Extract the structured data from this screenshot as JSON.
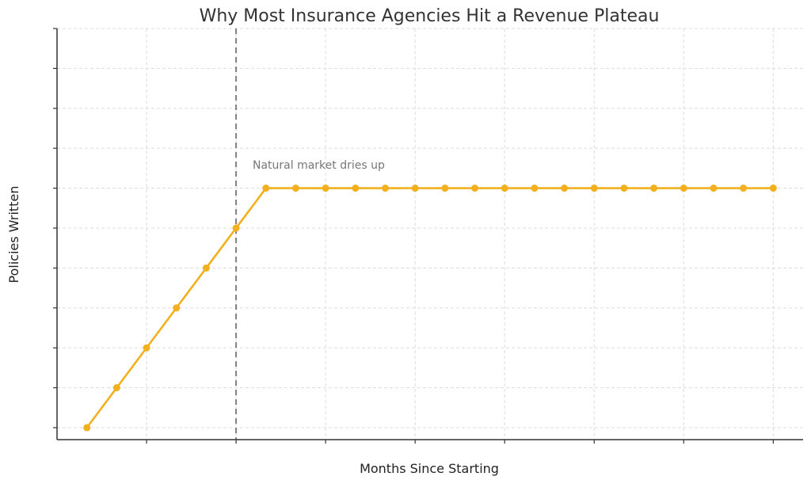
{
  "chart_data": {
    "type": "line",
    "title": "Why Most Insurance Agencies Hit a Revenue Plateau",
    "xlabel": "Months Since Starting",
    "ylabel": "Policies Written",
    "x": [
      1,
      2,
      3,
      4,
      5,
      6,
      7,
      8,
      9,
      10,
      11,
      12,
      13,
      14,
      15,
      16,
      17,
      18,
      19,
      20,
      21,
      22,
      23,
      24
    ],
    "series": [
      {
        "values": [
          0,
          1,
          2,
          3,
          4,
          5,
          6,
          6,
          6,
          6,
          6,
          6,
          6,
          6,
          6,
          6,
          6,
          6,
          6,
          6,
          6,
          6,
          6,
          6
        ],
        "color": "#F2B01E"
      }
    ],
    "xlim": [
      0,
      25
    ],
    "ylim": [
      -0.3,
      10
    ],
    "xticks": [
      3,
      6,
      9,
      12,
      15,
      18,
      21,
      24
    ],
    "yticks": [
      0,
      1,
      2,
      3,
      4,
      5,
      6,
      7,
      8,
      9,
      10
    ],
    "tick_labels_shown": false,
    "grid": true,
    "vline": {
      "x": 6,
      "color": "#808080",
      "style": "dashed"
    },
    "annotation": {
      "text": "Natural market dries up",
      "x": 6.5,
      "y": 6.6,
      "color": "#777777"
    }
  }
}
